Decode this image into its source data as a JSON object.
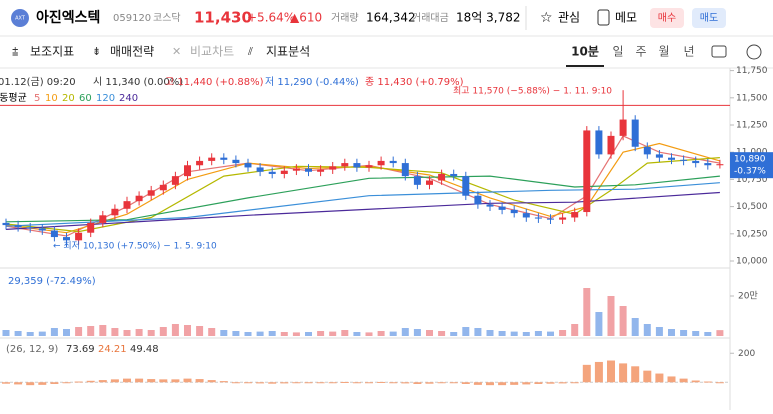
{
  "header": {
    "logo": "AXT",
    "name": "아진엑스텍",
    "code": "059120",
    "market": "코스닥",
    "price": "11,430",
    "change_pct": "+5.64%",
    "change": "▲610",
    "volume_label": "거래량",
    "volume": "164,342",
    "amount_label": "거래대금",
    "amount": "18억 3,782",
    "favorite": "관심",
    "memo": "메모",
    "buy": "매수",
    "sell": "매도"
  },
  "toolbar": {
    "items": [
      "보조지표",
      "매매전략",
      "비교차트",
      "지표분석"
    ],
    "periods": [
      "10분",
      "일",
      "주",
      "월",
      "년"
    ]
  },
  "info": {
    "date": "01.12(금) 09:20",
    "open": "시 11,340 (0.00%)",
    "high": "고 11,440 (+0.88%)",
    "low": "저 11,290 (-0.44%)",
    "close": "종 11,430 (+0.79%)",
    "ma_label": "이동평균"
  },
  "chart_data": {
    "type": "candlestick",
    "open": [
      10350,
      10330,
      10310,
      10300,
      10280,
      10220,
      10190,
      10260,
      10350,
      10420,
      10480,
      10550,
      10600,
      10650,
      10700,
      10780,
      10880,
      10920,
      10950,
      10930,
      10900,
      10860,
      10820,
      10800,
      10830,
      10850,
      10820,
      10840,
      10870,
      10900,
      10860,
      10880,
      10920,
      10900,
      10780,
      10700,
      10740,
      10800,
      10780,
      10600,
      10520,
      10500,
      10470,
      10440,
      10400,
      10390,
      10380,
      10400,
      10450,
      11200,
      10980,
      11150,
      11300,
      11050,
      10980,
      10950,
      10930,
      10920,
      10900,
      10880
    ],
    "high": [
      10390,
      10370,
      10350,
      10340,
      10320,
      10260,
      10300,
      10390,
      10460,
      10520,
      10590,
      10640,
      10690,
      10740,
      10820,
      10920,
      10960,
      10990,
      10990,
      10970,
      10940,
      10900,
      10860,
      10870,
      10890,
      10890,
      10880,
      10910,
      10940,
      10940,
      10920,
      10960,
      10960,
      10940,
      10820,
      10780,
      10840,
      10840,
      10820,
      10640,
      10560,
      10540,
      10510,
      10480,
      10440,
      10430,
      10440,
      10490,
      11240,
      11240,
      11190,
      11570,
      11340,
      11090,
      11020,
      10990,
      10970,
      10960,
      10940,
      10930
    ],
    "low": [
      10290,
      10270,
      10260,
      10240,
      10180,
      10130,
      10150,
      10220,
      10310,
      10380,
      10440,
      10510,
      10560,
      10610,
      10660,
      10740,
      10840,
      10880,
      10890,
      10860,
      10820,
      10780,
      10760,
      10760,
      10790,
      10780,
      10780,
      10800,
      10830,
      10820,
      10820,
      10840,
      10860,
      10740,
      10660,
      10660,
      10700,
      10740,
      10560,
      10480,
      10460,
      10430,
      10400,
      10360,
      10350,
      10340,
      10340,
      10360,
      10410,
      10940,
      10940,
      11110,
      11010,
      10940,
      10910,
      10890,
      10880,
      10860,
      10840,
      10850
    ],
    "close": [
      10330,
      10310,
      10300,
      10280,
      10220,
      10190,
      10260,
      10350,
      10420,
      10480,
      10550,
      10600,
      10650,
      10700,
      10780,
      10880,
      10920,
      10950,
      10930,
      10900,
      10860,
      10820,
      10800,
      10830,
      10850,
      10820,
      10840,
      10870,
      10900,
      10860,
      10880,
      10920,
      10900,
      10780,
      10700,
      10740,
      10800,
      10780,
      10600,
      10520,
      10500,
      10470,
      10440,
      10400,
      10390,
      10380,
      10400,
      10450,
      11200,
      10980,
      11150,
      11300,
      11050,
      10980,
      10950,
      10930,
      10920,
      10900,
      10880,
      10890
    ],
    "ylim": [
      9950,
      11800
    ],
    "yticks": [
      {
        "value": 11750,
        "label": "11,750"
      },
      {
        "value": 11500,
        "label": "11,500"
      },
      {
        "value": 11250,
        "label": "11,250"
      },
      {
        "value": 11000,
        "label": "11,000"
      },
      {
        "value": 10750,
        "label": "10,750"
      },
      {
        "value": 10500,
        "label": "10,500"
      },
      {
        "value": 10250,
        "label": "10,250"
      },
      {
        "value": 10000,
        "label": "10,000"
      }
    ],
    "up_color": "#e8343b",
    "down_color": "#2f6fd6",
    "series": [
      {
        "name": "5",
        "color": "#e57373",
        "x": [
          0,
          5,
          10,
          15,
          20,
          25,
          30,
          35,
          40,
          45,
          48,
          51,
          54,
          59
        ],
        "values": [
          10320,
          10230,
          10500,
          10820,
          10900,
          10830,
          10880,
          10760,
          10520,
          10390,
          10600,
          11150,
          11000,
          10900
        ]
      },
      {
        "name": "10",
        "color": "#f39c12",
        "x": [
          0,
          5,
          10,
          15,
          20,
          25,
          30,
          35,
          40,
          45,
          48,
          51,
          54,
          59
        ],
        "values": [
          10330,
          10260,
          10430,
          10750,
          10900,
          10850,
          10870,
          10790,
          10580,
          10410,
          10500,
          11000,
          11080,
          10920
        ]
      },
      {
        "name": "20",
        "color": "#b5b800",
        "x": [
          0,
          6,
          12,
          18,
          24,
          30,
          36,
          42,
          47,
          50,
          53,
          59
        ],
        "values": [
          10340,
          10270,
          10400,
          10780,
          10870,
          10860,
          10810,
          10560,
          10430,
          10650,
          10900,
          10950
        ]
      },
      {
        "name": "60",
        "color": "#2ca05a",
        "x": [
          0,
          10,
          20,
          30,
          40,
          47,
          52,
          59
        ],
        "values": [
          10360,
          10380,
          10580,
          10760,
          10780,
          10680,
          10700,
          10780
        ]
      },
      {
        "name": "120",
        "color": "#3b8fd9",
        "x": [
          0,
          15,
          30,
          45,
          52,
          59
        ],
        "values": [
          10320,
          10400,
          10600,
          10650,
          10660,
          10720
        ]
      },
      {
        "name": "240",
        "color": "#4b2a9a",
        "x": [
          0,
          20,
          40,
          47,
          59
        ],
        "values": [
          10290,
          10420,
          10530,
          10540,
          10630
        ]
      }
    ],
    "current": {
      "value": 10890,
      "label": "10,890",
      "pct": "-0.37%"
    },
    "ref_line": 11430,
    "max_note": "최고 11,570 (−5.88%) − 1. 11. 9:10",
    "min_note": "← 최저 10,130 (+7.50%) − 1. 5. 9:10",
    "volume": {
      "label": "29,359 (-72.49%)",
      "values": [
        30000,
        25000,
        20000,
        22000,
        40000,
        35000,
        45000,
        50000,
        55000,
        40000,
        30000,
        35000,
        30000,
        45000,
        60000,
        55000,
        50000,
        40000,
        30000,
        25000,
        20000,
        22000,
        25000,
        20000,
        18000,
        20000,
        25000,
        22000,
        30000,
        20000,
        18000,
        25000,
        22000,
        40000,
        35000,
        30000,
        25000,
        20000,
        45000,
        40000,
        30000,
        25000,
        22000,
        20000,
        25000,
        22000,
        30000,
        60000,
        240000,
        120000,
        200000,
        150000,
        90000,
        60000,
        45000,
        35000,
        30000,
        25000,
        20000,
        29359
      ],
      "ylim": [
        0,
        300000
      ],
      "yticks": [
        {
          "value": 200000,
          "label": "20만"
        }
      ]
    },
    "macd": {
      "label": "(26, 12, 9)",
      "v1": "73.69",
      "v2": "24.21",
      "v3": "49.48",
      "values": [
        -10,
        -15,
        -20,
        -18,
        -12,
        -5,
        5,
        10,
        15,
        20,
        25,
        25,
        22,
        20,
        20,
        25,
        22,
        15,
        8,
        0,
        -5,
        -8,
        -10,
        -8,
        -5,
        -5,
        -3,
        0,
        2,
        0,
        0,
        2,
        0,
        -8,
        -12,
        -10,
        -5,
        -5,
        -12,
        -18,
        -20,
        -20,
        -18,
        -15,
        -12,
        -10,
        -8,
        -5,
        120,
        140,
        150,
        130,
        110,
        80,
        60,
        40,
        25,
        12,
        5,
        0
      ],
      "ylim": [
        -150,
        250
      ],
      "yticks": [
        200
      ],
      "color": "#f4a47c"
    }
  }
}
